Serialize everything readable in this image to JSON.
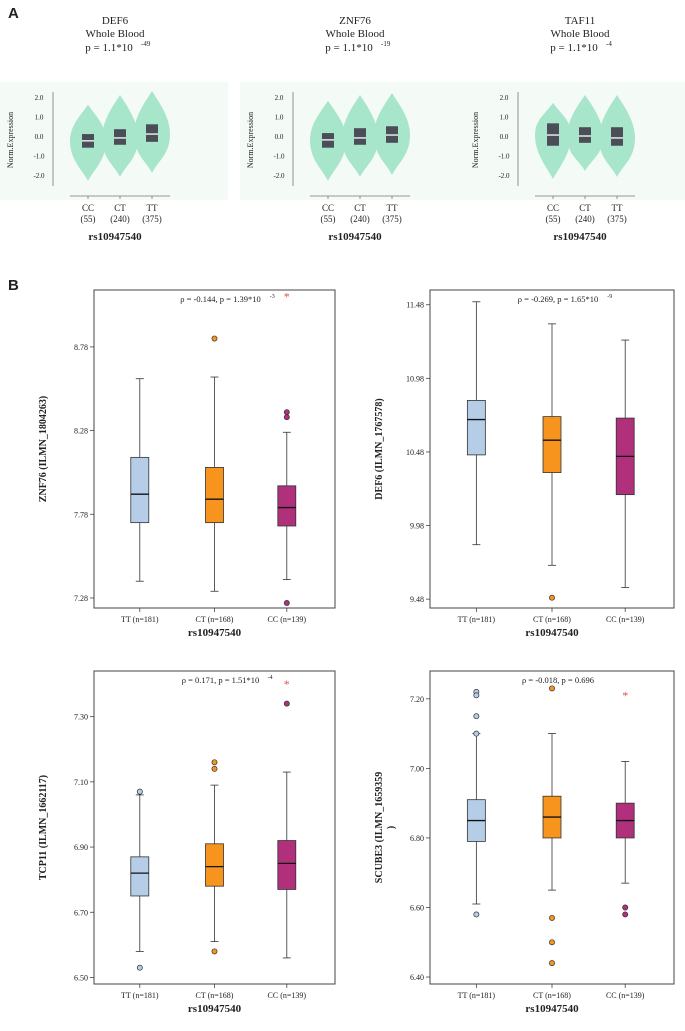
{
  "panel_labels": {
    "a": "A",
    "b": "B"
  },
  "colors": {
    "violin": "#a8e6cc",
    "violin_box": "#4a4f57",
    "violin_bg": "#f4faf6",
    "TT": "#b5cde6",
    "CT": "#f7941d",
    "CC": "#b0307b",
    "outlier_star": "#d9534f"
  },
  "violin_panels": [
    {
      "gene": "DEF6",
      "tissue": "Whole Blood",
      "p_base": "p = 1.1*10",
      "p_exp": "-49"
    },
    {
      "gene": "ZNF76",
      "tissue": "Whole Blood",
      "p_base": "p = 1.1*10",
      "p_exp": "-19"
    },
    {
      "gene": "TAF11",
      "tissue": "Whole Blood",
      "p_base": "p = 1.1*10",
      "p_exp": "-4"
    }
  ],
  "violin_common": {
    "ylabel": "Norm.Expression",
    "yticks": [
      "2.0",
      "1.0",
      "0.0",
      "-1.0",
      "-2.0"
    ],
    "genotypes": [
      "CC",
      "CT",
      "TT"
    ],
    "counts": [
      "(55)",
      "(240)",
      "(375)"
    ],
    "xlabel": "rs10947540"
  },
  "chart_data": [
    {
      "type": "violin",
      "title": "DEF6 Whole Blood p = 1.1*10^-49",
      "ylabel": "Norm.Expression",
      "xlabel": "rs10947540",
      "ylim": [
        -2.5,
        2.5
      ],
      "categories": [
        "CC (55)",
        "CT (240)",
        "TT (375)"
      ],
      "box": [
        {
          "q1": -0.6,
          "median": -0.25,
          "q3": 0.1,
          "min": -2.3,
          "max": 1.6
        },
        {
          "q1": -0.45,
          "median": -0.1,
          "q3": 0.35,
          "min": -2.1,
          "max": 2.1
        },
        {
          "q1": -0.3,
          "median": 0.1,
          "q3": 0.6,
          "min": -1.9,
          "max": 2.3
        }
      ]
    },
    {
      "type": "violin",
      "title": "ZNF76 Whole Blood p = 1.1*10^-19",
      "ylabel": "Norm.Expression",
      "xlabel": "rs10947540",
      "ylim": [
        -2.5,
        2.5
      ],
      "categories": [
        "CC (55)",
        "CT (240)",
        "TT (375)"
      ],
      "box": [
        {
          "q1": -0.6,
          "median": -0.2,
          "q3": 0.15,
          "min": -2.3,
          "max": 1.8
        },
        {
          "q1": -0.45,
          "median": -0.1,
          "q3": 0.4,
          "min": -2.1,
          "max": 2.1
        },
        {
          "q1": -0.35,
          "median": 0.05,
          "q3": 0.5,
          "min": -2.0,
          "max": 2.2
        }
      ]
    },
    {
      "type": "violin",
      "title": "TAF11 Whole Blood p = 1.1*10^-4",
      "ylabel": "Norm.Expression",
      "xlabel": "rs10947540",
      "ylim": [
        -2.5,
        2.5
      ],
      "categories": [
        "CC (55)",
        "CT (240)",
        "TT (375)"
      ],
      "box": [
        {
          "q1": -0.5,
          "median": 0.05,
          "q3": 0.65,
          "min": -2.2,
          "max": 1.7
        },
        {
          "q1": -0.35,
          "median": 0.0,
          "q3": 0.45,
          "min": -1.8,
          "max": 2.1
        },
        {
          "q1": -0.5,
          "median": -0.1,
          "q3": 0.45,
          "min": -2.1,
          "max": 2.1
        }
      ]
    },
    {
      "type": "box",
      "title": "ρ = -0.144, p = 1.39*10^-3",
      "ylabel": "ZNF76 (ILMN_1804263)",
      "xlabel": "rs10947540",
      "categories": [
        "TT (n=181)",
        "CT (n=168)",
        "CC (n=139)"
      ],
      "ylim": [
        7.22,
        9.12
      ],
      "yticks": [
        7.28,
        7.78,
        8.28,
        8.78
      ],
      "boxes": [
        {
          "min": 7.38,
          "q1": 7.73,
          "median": 7.9,
          "q3": 8.12,
          "max": 8.59,
          "outliers": [],
          "extremes": []
        },
        {
          "min": 7.32,
          "q1": 7.73,
          "median": 7.87,
          "q3": 8.06,
          "max": 8.6,
          "outliers": [
            8.83
          ],
          "extremes": []
        },
        {
          "min": 7.39,
          "q1": 7.71,
          "median": 7.82,
          "q3": 7.95,
          "max": 8.27,
          "outliers": [
            8.39,
            8.36,
            7.25
          ],
          "extremes": [
            9.08
          ]
        }
      ]
    },
    {
      "type": "box",
      "title": "ρ = -0.269, p = 1.65*10^-9",
      "ylabel": "DEF6 (ILMN_1767578)",
      "xlabel": "rs10947540",
      "categories": [
        "TT (n=181)",
        "CT (n=168)",
        "CC (n=139)"
      ],
      "ylim": [
        9.42,
        11.58
      ],
      "yticks": [
        9.48,
        9.98,
        10.48,
        10.98,
        11.48
      ],
      "boxes": [
        {
          "min": 9.85,
          "q1": 10.46,
          "median": 10.7,
          "q3": 10.83,
          "max": 11.5,
          "outliers": [],
          "extremes": []
        },
        {
          "min": 9.71,
          "q1": 10.34,
          "median": 10.56,
          "q3": 10.72,
          "max": 11.35,
          "outliers": [
            9.49
          ],
          "extremes": []
        },
        {
          "min": 9.56,
          "q1": 10.19,
          "median": 10.45,
          "q3": 10.71,
          "max": 11.24,
          "outliers": [],
          "extremes": []
        }
      ]
    },
    {
      "type": "box",
      "title": "ρ = 0.171, p = 1.51*10^-4",
      "ylabel": "TCP11 (ILMN_1662117)",
      "xlabel": "rs10947540",
      "categories": [
        "TT (n=181)",
        "CT (n=168)",
        "CC (n=139)"
      ],
      "ylim": [
        6.48,
        7.44
      ],
      "yticks": [
        6.5,
        6.7,
        6.9,
        7.1,
        7.3
      ],
      "boxes": [
        {
          "min": 6.58,
          "q1": 6.75,
          "median": 6.82,
          "q3": 6.87,
          "max": 7.06,
          "outliers": [
            7.07,
            6.53
          ],
          "extremes": []
        },
        {
          "min": 6.61,
          "q1": 6.78,
          "median": 6.84,
          "q3": 6.91,
          "max": 7.09,
          "outliers": [
            7.16,
            7.14,
            6.58
          ],
          "extremes": []
        },
        {
          "min": 6.56,
          "q1": 6.77,
          "median": 6.85,
          "q3": 6.92,
          "max": 7.13,
          "outliers": [
            7.34
          ],
          "extremes": [
            7.4
          ]
        }
      ]
    },
    {
      "type": "box",
      "title": "ρ = -0.018, p = 0.696",
      "ylabel": "SCUBE3 (ILMN_1659359\n)",
      "xlabel": "rs10947540",
      "categories": [
        "TT (n=181)",
        "CT (n=168)",
        "CC (n=139)"
      ],
      "ylim": [
        6.38,
        7.28
      ],
      "yticks": [
        6.4,
        6.6,
        6.8,
        7.0,
        7.2
      ],
      "boxes": [
        {
          "min": 6.61,
          "q1": 6.79,
          "median": 6.85,
          "q3": 6.91,
          "max": 7.1,
          "outliers": [
            7.22,
            7.21,
            7.15,
            7.1,
            6.58
          ],
          "extremes": []
        },
        {
          "min": 6.65,
          "q1": 6.8,
          "median": 6.86,
          "q3": 6.92,
          "max": 7.1,
          "outliers": [
            7.23,
            6.57,
            6.5,
            6.44
          ],
          "extremes": []
        },
        {
          "min": 6.67,
          "q1": 6.8,
          "median": 6.85,
          "q3": 6.9,
          "max": 7.02,
          "outliers": [
            6.6,
            6.58
          ],
          "extremes": [
            7.21
          ]
        }
      ]
    }
  ],
  "box_panels": [
    {
      "rho_text": "ρ = -0.144, p = 1.39*10",
      "rho_exp": "-3",
      "ylabel": "ZNF76 (ILMN_1804263)",
      "ylabel2": "",
      "yticks": [
        "7.28",
        "7.78",
        "8.28",
        "8.78"
      ]
    },
    {
      "rho_text": "ρ = -0.269, p = 1.65*10",
      "rho_exp": "-9",
      "ylabel": "DEF6 (ILMN_1767578)",
      "ylabel2": "",
      "yticks": [
        "9.48",
        "9.98",
        "10.48",
        "10.98",
        "11.48"
      ]
    },
    {
      "rho_text": "ρ = 0.171, p = 1.51*10",
      "rho_exp": "-4",
      "ylabel": "TCP11 (ILMN_1662117)",
      "ylabel2": "",
      "yticks": [
        "6.50",
        "6.70",
        "6.90",
        "7.10",
        "7.30"
      ]
    },
    {
      "rho_text": "ρ = -0.018, p = 0.696",
      "rho_exp": "",
      "ylabel": "SCUBE3 (ILMN_1659359",
      "ylabel2": ")",
      "yticks": [
        "6.40",
        "6.60",
        "6.80",
        "7.00",
        "7.20"
      ]
    }
  ],
  "box_common": {
    "categories": [
      "TT (n=181)",
      "CT (n=168)",
      "CC (n=139)"
    ],
    "xlabel": "rs10947540"
  }
}
